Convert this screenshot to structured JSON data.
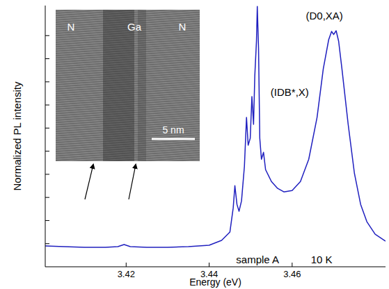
{
  "chart_data": {
    "type": "line",
    "x_label": "Energy (eV)",
    "y_label": "Normalized PL intensity",
    "xlim": [
      3.4005,
      3.4825
    ],
    "xticks": [
      3.42,
      3.44,
      3.46
    ],
    "ylim": [
      0,
      1.13
    ],
    "yticks": [
      0.1,
      0.2,
      0.3,
      0.4,
      0.5,
      0.6,
      0.7,
      0.8,
      0.9,
      1.0
    ],
    "tick_labels": "x",
    "grid": false,
    "series": [
      {
        "name": "sample A",
        "color": "#1f1fbf",
        "x": [
          3.4005,
          3.405,
          3.41,
          3.415,
          3.418,
          3.4195,
          3.421,
          3.425,
          3.43,
          3.435,
          3.44,
          3.443,
          3.445,
          3.4458,
          3.4462,
          3.4467,
          3.4472,
          3.4478,
          3.4485,
          3.449,
          3.4494,
          3.4499,
          3.4503,
          3.4507,
          3.451,
          3.4514,
          3.4516,
          3.4519,
          3.4522,
          3.4526,
          3.4531,
          3.4536,
          3.455,
          3.4565,
          3.458,
          3.46,
          3.462,
          3.464,
          3.466,
          3.4675,
          3.4688,
          3.4695,
          3.47,
          3.4706,
          3.4712,
          3.472,
          3.4735,
          3.475,
          3.4765,
          3.478,
          3.48,
          3.4825
        ],
        "values": [
          0.09,
          0.087,
          0.084,
          0.084,
          0.087,
          0.096,
          0.087,
          0.084,
          0.084,
          0.087,
          0.093,
          0.114,
          0.15,
          0.255,
          0.351,
          0.27,
          0.24,
          0.285,
          0.435,
          0.646,
          0.526,
          0.556,
          0.736,
          0.616,
          0.826,
          0.976,
          1.126,
          0.946,
          0.556,
          0.465,
          0.495,
          0.42,
          0.369,
          0.339,
          0.324,
          0.33,
          0.369,
          0.465,
          0.646,
          0.856,
          0.982,
          1.018,
          1.005,
          1.021,
          0.976,
          0.856,
          0.616,
          0.405,
          0.27,
          0.195,
          0.141,
          0.111
        ]
      }
    ],
    "annotations": [
      {
        "text": "(IDB*,X)",
        "x": 3.4548,
        "y": 0.74
      },
      {
        "text": "(D0,XA)",
        "x": 3.4633,
        "y": 1.07
      },
      {
        "text": "sample A",
        "x": 3.4465,
        "y": 0.015
      },
      {
        "text": "10 K",
        "x": 3.4645,
        "y": 0.015
      }
    ],
    "inset": {
      "labels": [
        "N",
        "Ga",
        "N"
      ],
      "scale_bar": "5 nm"
    }
  }
}
